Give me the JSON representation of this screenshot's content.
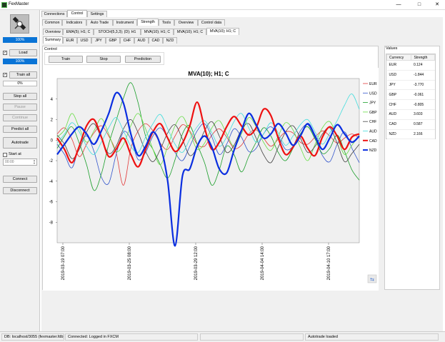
{
  "window": {
    "title": "FexMaster",
    "minimize": "—",
    "maximize": "□",
    "close": "✕"
  },
  "left": {
    "progress1": "100%",
    "load_label": "Load",
    "progress2": "100%",
    "train_all_label": "Train all",
    "progress3": "0%",
    "stop_all": "Stop all",
    "pause": "Pause",
    "continue": "Continue",
    "predict_all": "Predict all",
    "autotrade": "Autotrade",
    "start_at": "Start at",
    "time_value": "00:00",
    "connect": "Connect",
    "disconnect": "Disconnect"
  },
  "tabs_main": [
    "Connections",
    "Control",
    "Settings"
  ],
  "tabs_control": [
    "Common",
    "Indicators",
    "Auto Trade",
    "Instrument",
    "Strength",
    "Tools",
    "Overview",
    "Control data"
  ],
  "tabs_indicator": [
    "Overview",
    "EMA(5); H1; C",
    "STOCH(5,3,3); (D); H1",
    "MVA(10); H1; C",
    "MVA(10); H1; C",
    "MVA(10); H1; C"
  ],
  "tabs_currency": [
    "Summary",
    "EUR",
    "USD",
    "JPY",
    "GBP",
    "CHF",
    "AUD",
    "CAD",
    "NZD"
  ],
  "control": {
    "group_label": "Control",
    "train": "Train",
    "stop": "Stop",
    "prediction": "Prediction"
  },
  "values": {
    "group_label": "Values",
    "col_currency": "Currency",
    "col_strength": "Strength",
    "rows": [
      {
        "c": "EUR",
        "v": "0.124"
      },
      {
        "c": "USD",
        "v": "-1.844"
      },
      {
        "c": "JPY",
        "v": "-3.770"
      },
      {
        "c": "GBP",
        "v": "-0.061"
      },
      {
        "c": "CHF",
        "v": "-0.805"
      },
      {
        "c": "AUD",
        "v": "3.603"
      },
      {
        "c": "CAD",
        "v": "0.587"
      },
      {
        "c": "NZD",
        "v": "2.166"
      }
    ]
  },
  "status": {
    "db": "DB: localhost/3055 (fexmaster.fdb)",
    "conn": "Connected: Logged in FXCM",
    "autotrade": "Autotrade loaded"
  },
  "chart_data": {
    "type": "line",
    "title": "MVA(10); H1; C",
    "ylim": [
      -10,
      6
    ],
    "yticks": [
      4,
      2,
      0,
      -2,
      -4,
      -6,
      -8
    ],
    "xticks": [
      "2019-03-19 07:00",
      "2019-03-25 08:00",
      "2019-03-29 12:00",
      "2019-04-04 14:00",
      "2019-04-10 17:00"
    ],
    "legend_position": "right",
    "series": [
      {
        "name": "EUR",
        "color": "#e23b3b",
        "values": [
          0.6,
          1.2,
          0.1,
          -1.6,
          -0.4,
          0.7,
          1.4,
          0.4,
          -1.2,
          -4.4,
          -0.8,
          0.9,
          1.6,
          0.9,
          -0.3,
          -0.9,
          0.4,
          1.5,
          0.9,
          -0.4,
          -0.6,
          0.5,
          1.1,
          0.3,
          -0.8,
          -0.5,
          0.6,
          1.0,
          0.2,
          -0.6,
          0.1,
          0.8,
          0.7,
          -0.2,
          -0.4,
          0.3,
          0.9,
          0.4,
          -0.3,
          0.2,
          0.6,
          0.2
        ]
      },
      {
        "name": "USD",
        "color": "#3355cc",
        "values": [
          -0.4,
          -1.4,
          -2.7,
          -0.6,
          0.4,
          -1.1,
          -3.6,
          -4.2,
          -1.4,
          0.8,
          0.1,
          -1.9,
          -1.2,
          0.4,
          1.2,
          0.2,
          -1.2,
          -2.0,
          -0.6,
          0.9,
          1.6,
          0.3,
          -1.4,
          -0.4,
          1.1,
          0.3,
          -1.1,
          -0.8,
          0.6,
          1.3,
          0.4,
          -0.9,
          -0.6,
          0.9,
          1.5,
          0.2,
          -1.5,
          -2.1,
          -0.4,
          0.8,
          -0.8,
          -2.2
        ]
      },
      {
        "name": "JPY",
        "color": "#1a9e2a",
        "values": [
          -0.8,
          0.4,
          1.3,
          -0.3,
          -2.4,
          -4.9,
          -3.3,
          -0.4,
          1.9,
          4.1,
          5.6,
          3.6,
          0.4,
          -0.9,
          -2.4,
          -3.7,
          -1.9,
          0.6,
          1.4,
          -0.4,
          -2.2,
          -4.4,
          -2.9,
          -0.6,
          -1.4,
          -3.1,
          -1.6,
          -0.2,
          1.2,
          0.4,
          -1.2,
          -2.0,
          -0.8,
          0.6,
          1.3,
          0.1,
          -1.3,
          -0.8,
          0.5,
          -1.1,
          -2.9,
          -3.9
        ]
      },
      {
        "name": "GBP",
        "color": "#66dd44",
        "values": [
          0.3,
          1.0,
          2.6,
          1.2,
          -0.2,
          0.9,
          2.1,
          0.6,
          -1.1,
          -0.4,
          1.4,
          2.6,
          1.1,
          -0.9,
          -2.4,
          -0.6,
          1.4,
          2.3,
          0.8,
          -0.9,
          -0.3,
          1.2,
          1.9,
          0.6,
          -0.6,
          0.6,
          2.2,
          1.3,
          -0.2,
          -1.0,
          0.4,
          1.7,
          1.0,
          -0.7,
          -2.0,
          -0.4,
          1.2,
          1.8,
          0.3,
          -1.4,
          -0.5,
          0.5
        ]
      },
      {
        "name": "CHF",
        "color": "#444444",
        "values": [
          0.5,
          -0.4,
          -1.8,
          -0.9,
          0.8,
          1.6,
          0.2,
          -1.3,
          -0.6,
          1.1,
          2.0,
          0.7,
          -1.1,
          -2.1,
          -0.9,
          0.7,
          1.5,
          0.1,
          -1.5,
          -0.7,
          0.9,
          1.8,
          0.4,
          -1.2,
          -0.5,
          1.0,
          1.6,
          0.2,
          -1.4,
          -2.2,
          -0.7,
          0.8,
          1.4,
          0.2,
          -1.2,
          -0.6,
          0.6,
          1.2,
          -0.3,
          -2.1,
          -1.3,
          -0.4
        ]
      },
      {
        "name": "AUD",
        "color": "#44dddd",
        "values": [
          -0.3,
          0.6,
          1.7,
          0.8,
          -0.6,
          -1.4,
          -0.2,
          1.2,
          2.2,
          0.9,
          -0.6,
          -1.2,
          0.3,
          1.6,
          2.5,
          1.1,
          -0.4,
          -1.2,
          0.1,
          1.3,
          1.9,
          0.7,
          -0.6,
          0.3,
          1.8,
          2.6,
          1.2,
          -0.2,
          0.6,
          1.7,
          0.7,
          -0.5,
          0.4,
          1.5,
          2.0,
          0.8,
          -0.4,
          0.7,
          1.9,
          3.4,
          4.5,
          3.0
        ]
      },
      {
        "name": "CAD",
        "color": "#ee1111",
        "values": [
          0.2,
          -0.9,
          -2.2,
          -0.6,
          1.4,
          2.0,
          0.3,
          -1.6,
          -0.9,
          0.2,
          -1.4,
          -2.6,
          -0.9,
          0.8,
          1.6,
          0.2,
          -1.1,
          -0.3,
          1.4,
          3.7,
          1.2,
          -0.9,
          -0.2,
          1.3,
          2.3,
          1.4,
          0.5,
          1.2,
          3.0,
          2.4,
          0.2,
          -1.4,
          -0.7,
          0.4,
          -0.8,
          -1.5,
          0.3,
          1.3,
          0.4,
          -0.9,
          0.3,
          0.6
        ]
      },
      {
        "name": "NZD",
        "color": "#0a2ee0",
        "values": [
          -1.4,
          -0.4,
          0.6,
          1.3,
          0.6,
          -0.4,
          0.9,
          2.6,
          4.6,
          3.6,
          0.6,
          -1.5,
          -0.6,
          0.8,
          -0.5,
          -4.0,
          -10.3,
          -3.5,
          -2.8,
          -0.6,
          0.4,
          -0.7,
          -2.8,
          -3.2,
          -1.0,
          0.9,
          2.6,
          1.5,
          0.2,
          0.6,
          1.6,
          0.7,
          -0.5,
          0.4,
          1.6,
          0.4,
          -0.9,
          0.2,
          1.5,
          0.6,
          -0.2,
          0.4
        ]
      }
    ]
  }
}
